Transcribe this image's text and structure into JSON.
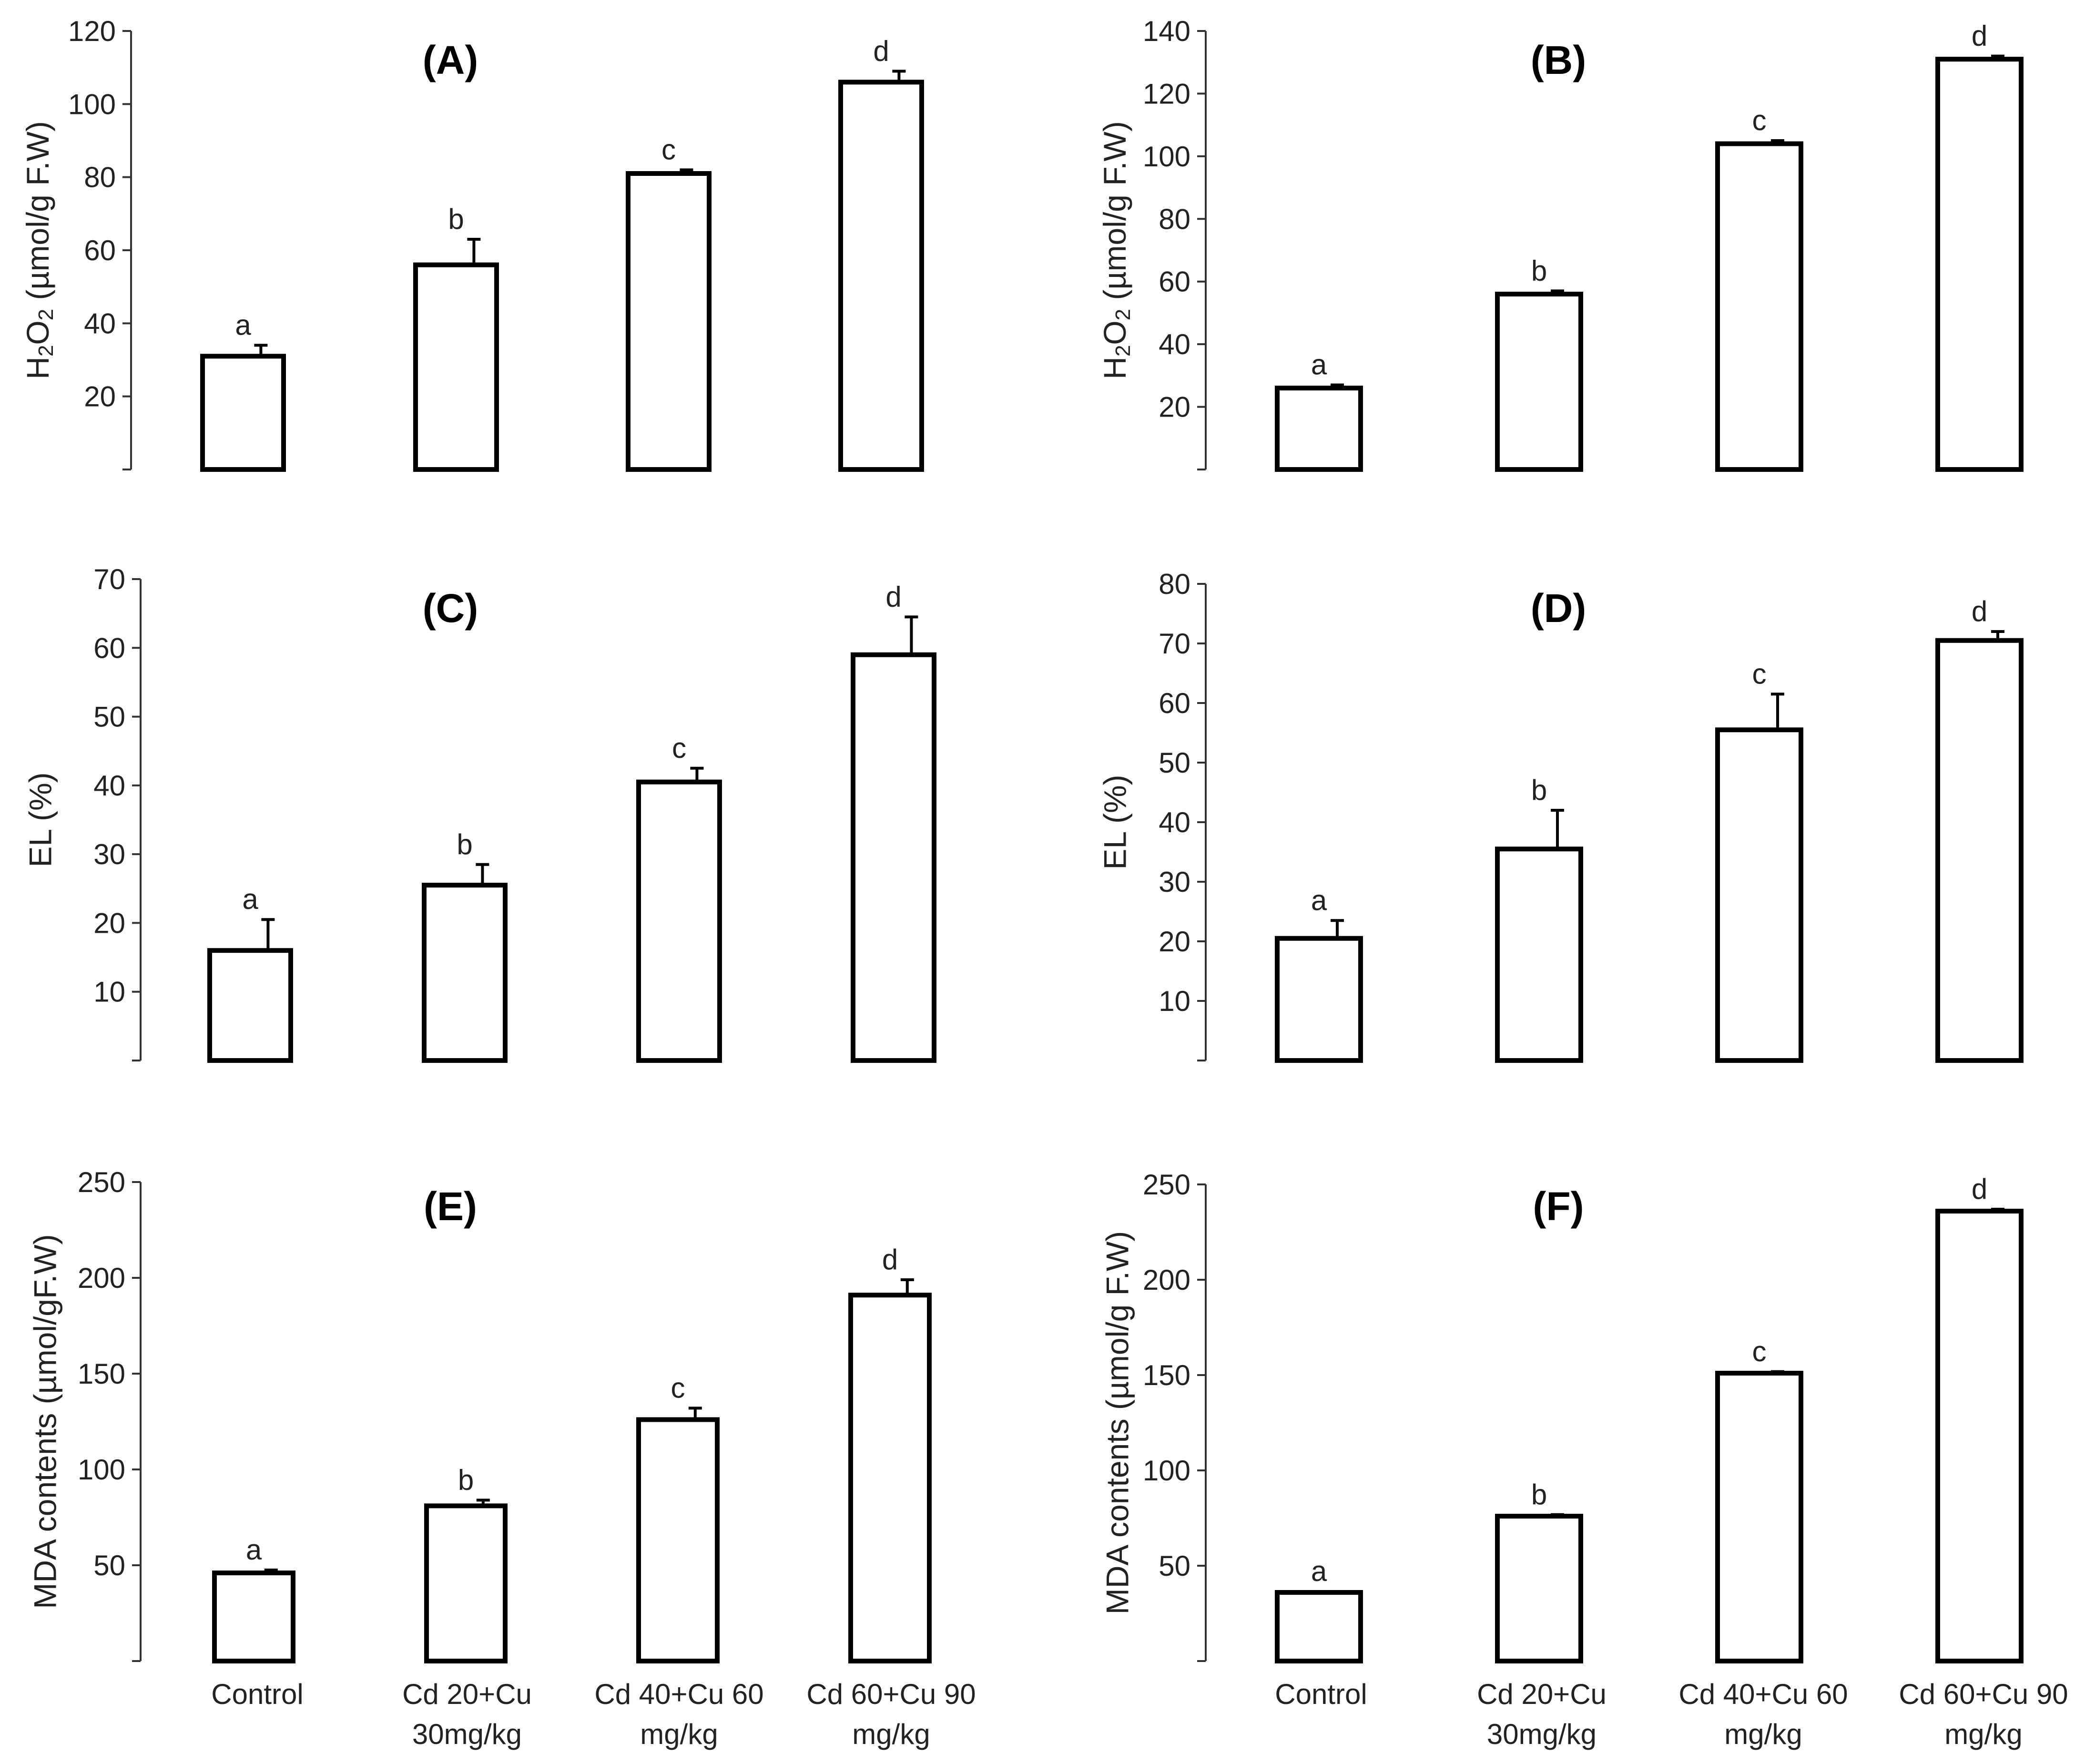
{
  "chart_data": [
    {
      "panel": "(A)",
      "type": "bar",
      "categories": [
        "Control",
        "Cd 20+Cu 30mg/kg",
        "Cd 40+Cu 60 mg/kg",
        "Cd 60+Cu 90 mg/kg"
      ],
      "values": [
        31,
        56,
        81,
        106
      ],
      "errors": [
        3,
        7,
        1,
        3
      ],
      "significance": [
        "a",
        "b",
        "c",
        "d"
      ],
      "ylabel": {
        "main": "H",
        "sub1": "2",
        "mid": "O",
        "sub2": "2",
        "tail": " (µmol/g F.W)"
      },
      "ylim": [
        0,
        120
      ],
      "yticks": [
        20,
        40,
        60,
        80,
        100,
        120
      ],
      "xlabel": ""
    },
    {
      "panel": "(B)",
      "type": "bar",
      "categories": [
        "Control",
        "Cd 20+Cu 30mg/kg",
        "Cd 40+Cu 60 mg/kg",
        "Cd 60+Cu 90 mg/kg"
      ],
      "values": [
        26,
        56,
        104,
        131
      ],
      "errors": [
        1,
        1,
        1,
        1
      ],
      "significance": [
        "a",
        "b",
        "c",
        "d"
      ],
      "ylabel": {
        "main": "H",
        "sub1": "2",
        "mid": "O",
        "sub2": "2",
        "tail": " (µmol/g F.W)"
      },
      "ylim": [
        0,
        140
      ],
      "yticks": [
        20,
        40,
        60,
        80,
        100,
        120,
        140
      ],
      "xlabel": ""
    },
    {
      "panel": "(C)",
      "type": "bar",
      "categories": [
        "Control",
        "Cd 20+Cu 30mg/kg",
        "Cd 40+Cu 60 mg/kg",
        "Cd 60+Cu 90 mg/kg"
      ],
      "values": [
        16,
        25.5,
        40.5,
        59
      ],
      "errors": [
        4.5,
        3,
        2,
        5.5
      ],
      "significance": [
        "a",
        "b",
        "c",
        "d"
      ],
      "ylabel": {
        "main": "EL  (%)"
      },
      "ylim": [
        0,
        70
      ],
      "yticks": [
        10,
        20,
        30,
        40,
        50,
        60,
        70
      ],
      "xlabel": ""
    },
    {
      "panel": "(D)",
      "type": "bar",
      "categories": [
        "Control",
        "Cd 20+Cu 30mg/kg",
        "Cd 40+Cu 60 mg/kg",
        "Cd 60+Cu 90 mg/kg"
      ],
      "values": [
        20.5,
        35.5,
        55.5,
        70.5
      ],
      "errors": [
        3,
        6.5,
        6,
        1.5
      ],
      "significance": [
        "a",
        "b",
        "c",
        "d"
      ],
      "ylabel": {
        "main": "EL  (%)"
      },
      "ylim": [
        0,
        80
      ],
      "yticks": [
        10,
        20,
        30,
        40,
        50,
        60,
        70,
        80
      ],
      "xlabel": ""
    },
    {
      "panel": "(E)",
      "type": "bar",
      "categories": [
        "Control",
        "Cd 20+Cu 30mg/kg",
        "Cd 40+Cu 60 mg/kg",
        "Cd 60+Cu 90 mg/kg"
      ],
      "values": [
        46,
        81,
        126,
        191
      ],
      "errors": [
        1.5,
        3,
        6,
        8
      ],
      "significance": [
        "a",
        "b",
        "c",
        "d"
      ],
      "ylabel": {
        "main": "MDA contents  (µmol/gF.W)"
      },
      "ylim": [
        0,
        250
      ],
      "yticks": [
        50,
        100,
        150,
        200,
        250
      ],
      "xlabel": ""
    },
    {
      "panel": "(F)",
      "type": "bar",
      "categories": [
        "Control",
        "Cd 20+Cu 30mg/kg",
        "Cd 40+Cu 60 mg/kg",
        "Cd 60+Cu 90 mg/kg"
      ],
      "values": [
        36,
        76,
        151,
        236
      ],
      "errors": [
        0.5,
        0.8,
        0.8,
        1
      ],
      "significance": [
        "a",
        "b",
        "c",
        "d"
      ],
      "ylabel": {
        "main": "MDA contents (µmol/g F.W)"
      },
      "ylim": [
        0,
        250
      ],
      "yticks": [
        50,
        100,
        150,
        200,
        250
      ],
      "xlabel": ""
    }
  ],
  "x_axis_labels": [
    [
      "Control"
    ],
    [
      "Cd 20+Cu",
      "30mg/kg"
    ],
    [
      "Cd 40+Cu 60",
      "mg/kg"
    ],
    [
      "Cd 60+Cu 90",
      "mg/kg"
    ]
  ],
  "colors": {
    "bar_fill": "#ffffff",
    "bar_stroke": "#000000",
    "axis": "#333333",
    "text": "#222222"
  }
}
